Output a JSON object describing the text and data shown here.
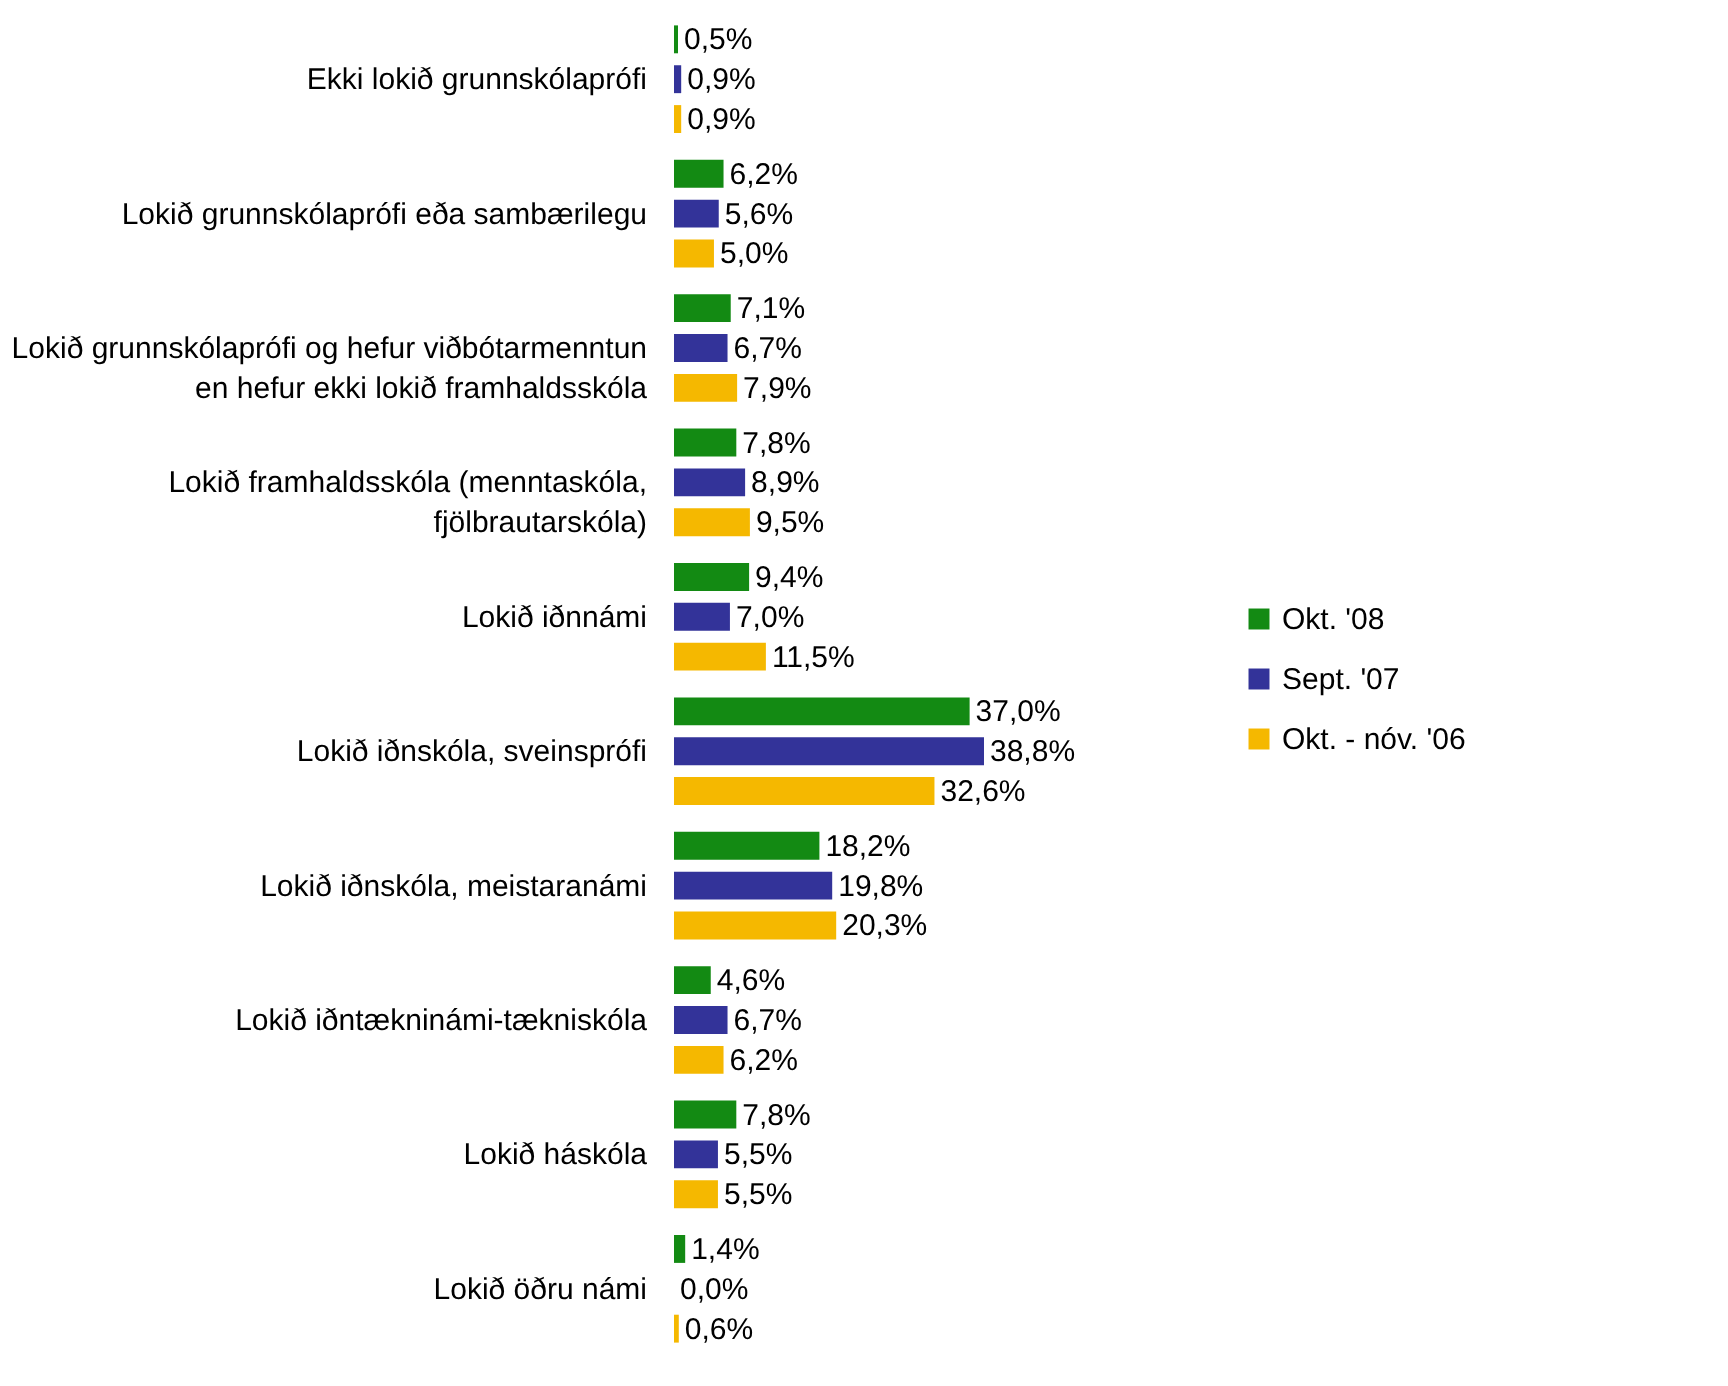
{
  "chart_data": {
    "type": "bar",
    "orientation": "horizontal",
    "legend": "right",
    "categories": [
      "Ekki lokið grunnskólaprófi",
      "Lokið grunnskólaprófi eða sambærilegu",
      "Lokið grunnskólaprófi og hefur viðbótarmenntun en hefur ekki lokið framhaldsskóla",
      "Lokið framhaldsskóla (menntaskóla, fjölbrautarskóla)",
      "Lokið iðnnámi",
      "Lokið iðnskóla, sveinsprófi",
      "Lokið iðnskóla, meistaranámi",
      "Lokið iðntækninámi-tækniskóla",
      "Lokið háskóla",
      "Lokið öðru námi"
    ],
    "series": [
      {
        "name": "Okt. '08",
        "color": "#138a13",
        "values": [
          0.5,
          6.2,
          7.1,
          7.8,
          9.4,
          37.0,
          18.2,
          4.6,
          7.8,
          1.4
        ],
        "value_labels": [
          "0,5%",
          "6,2%",
          "7,1%",
          "7,8%",
          "9,4%",
          "37,0%",
          "18,2%",
          "4,6%",
          "7,8%",
          "1,4%"
        ]
      },
      {
        "name": "Sept. '07",
        "color": "#333399",
        "values": [
          0.9,
          5.6,
          6.7,
          8.9,
          7.0,
          38.8,
          19.8,
          6.7,
          5.5,
          0.0
        ],
        "value_labels": [
          "0,9%",
          "5,6%",
          "6,7%",
          "8,9%",
          "7,0%",
          "38,8%",
          "19,8%",
          "6,7%",
          "5,5%",
          "0,0%"
        ]
      },
      {
        "name": "Okt. - nóv. '06",
        "color": "#f5b800",
        "values": [
          0.9,
          5.0,
          7.9,
          9.5,
          11.5,
          32.6,
          20.3,
          6.2,
          5.5,
          0.6
        ],
        "value_labels": [
          "0,9%",
          "5,0%",
          "7,9%",
          "9,5%",
          "11,5%",
          "32,6%",
          "20,3%",
          "6,2%",
          "5,5%",
          "0,6%"
        ]
      }
    ]
  }
}
